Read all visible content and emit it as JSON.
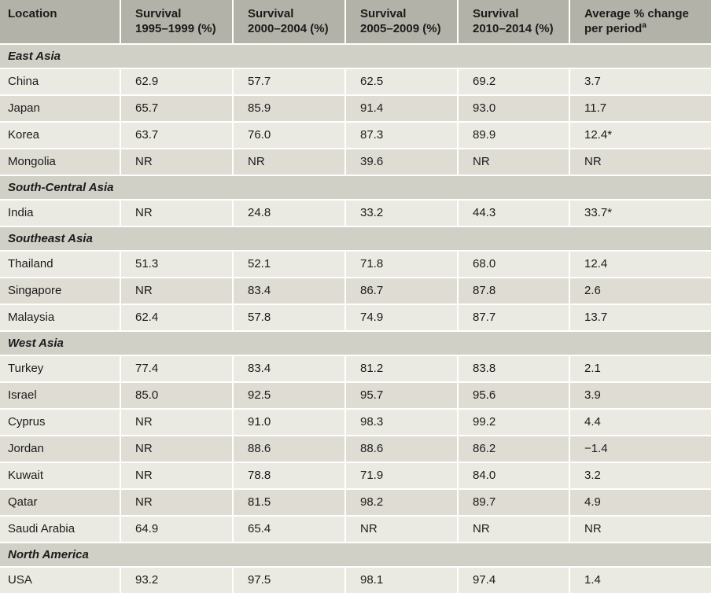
{
  "table": {
    "columns": [
      {
        "line1": "Location",
        "line2": ""
      },
      {
        "line1": "Survival",
        "line2": "1995–1999 (%)"
      },
      {
        "line1": "Survival",
        "line2": "2000–2004 (%)"
      },
      {
        "line1": "Survival",
        "line2": "2005–2009 (%)"
      },
      {
        "line1": "Survival",
        "line2": "2010–2014 (%)"
      },
      {
        "line1": "Average % change",
        "line2": "per period",
        "sup": "a"
      }
    ],
    "sections": [
      {
        "name": "East Asia",
        "rows": [
          {
            "location": "China",
            "values": [
              "62.9",
              "57.7",
              "62.5",
              "69.2",
              "3.7"
            ]
          },
          {
            "location": "Japan",
            "values": [
              "65.7",
              "85.9",
              "91.4",
              "93.0",
              "11.7"
            ]
          },
          {
            "location": "Korea",
            "values": [
              "63.7",
              "76.0",
              "87.3",
              "89.9",
              "12.4*"
            ]
          },
          {
            "location": "Mongolia",
            "values": [
              "NR",
              "NR",
              "39.6",
              "NR",
              "NR"
            ]
          }
        ]
      },
      {
        "name": "South-Central Asia",
        "rows": [
          {
            "location": "India",
            "values": [
              "NR",
              "24.8",
              "33.2",
              "44.3",
              "33.7*"
            ]
          }
        ]
      },
      {
        "name": "Southeast Asia",
        "rows": [
          {
            "location": "Thailand",
            "values": [
              "51.3",
              "52.1",
              "71.8",
              "68.0",
              "12.4"
            ]
          },
          {
            "location": "Singapore",
            "values": [
              "NR",
              "83.4",
              "86.7",
              "87.8",
              "2.6"
            ]
          },
          {
            "location": "Malaysia",
            "values": [
              "62.4",
              "57.8",
              "74.9",
              "87.7",
              "13.7"
            ]
          }
        ]
      },
      {
        "name": "West Asia",
        "rows": [
          {
            "location": "Turkey",
            "values": [
              "77.4",
              "83.4",
              "81.2",
              "83.8",
              "2.1"
            ]
          },
          {
            "location": "Israel",
            "values": [
              "85.0",
              "92.5",
              "95.7",
              "95.6",
              "3.9"
            ]
          },
          {
            "location": "Cyprus",
            "values": [
              "NR",
              "91.0",
              "98.3",
              "99.2",
              "4.4"
            ]
          },
          {
            "location": "Jordan",
            "values": [
              "NR",
              "88.6",
              "88.6",
              "86.2",
              "−1.4"
            ]
          },
          {
            "location": "Kuwait",
            "values": [
              "NR",
              "78.8",
              "71.9",
              "84.0",
              "3.2"
            ]
          },
          {
            "location": "Qatar",
            "values": [
              "NR",
              "81.5",
              "98.2",
              "89.7",
              "4.9"
            ]
          },
          {
            "location": "Saudi Arabia",
            "values": [
              "64.9",
              "65.4",
              "NR",
              "NR",
              "NR"
            ]
          }
        ]
      },
      {
        "name": "North America",
        "rows": [
          {
            "location": "USA",
            "values": [
              "93.2",
              "97.5",
              "98.1",
              "97.4",
              "1.4"
            ]
          }
        ]
      }
    ]
  },
  "colors": {
    "header_bg": "#b2b2a8",
    "section_bg": "#d0d0c6",
    "row_light_bg": "#ebeae2",
    "row_dark_bg": "#dedcd3",
    "separator": "#ffffff",
    "text": "#1b1b1b"
  }
}
